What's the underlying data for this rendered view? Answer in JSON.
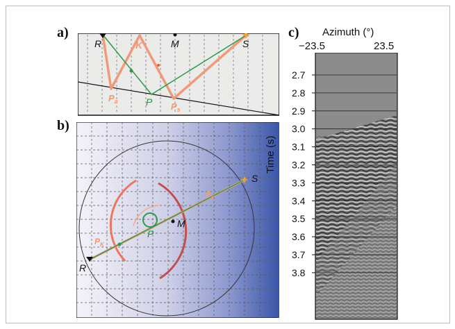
{
  "panels": {
    "a": {
      "label": "a)",
      "points": {
        "R": "R",
        "K": "K",
        "M": "M",
        "S": "S",
        "P": "P",
        "Pa": "P",
        "Pa_sub": "a",
        "Ps": "P",
        "Ps_sub": "s"
      }
    },
    "b": {
      "label": "b)",
      "points": {
        "R": "R",
        "S": "S",
        "M": "M",
        "P": "P",
        "Pk": "P",
        "Pk_sub": "K",
        "Ps": "P",
        "Ps_sub": "s"
      }
    },
    "c": {
      "label": "c)",
      "x_title": "Azimuth (°)",
      "x_min_label": "−23.5",
      "x_max_label": "23.5",
      "y_title": "Time (s)",
      "y_ticks": [
        "2.7",
        "2.8",
        "2.9",
        "3.0",
        "3.1",
        "3.2",
        "3.3",
        "3.4",
        "3.5",
        "3.6",
        "3.7",
        "3.8"
      ]
    }
  },
  "colors": {
    "ray": "#f09a7c",
    "path": "#2a9a4a",
    "background_blue": "#3a55a8"
  }
}
